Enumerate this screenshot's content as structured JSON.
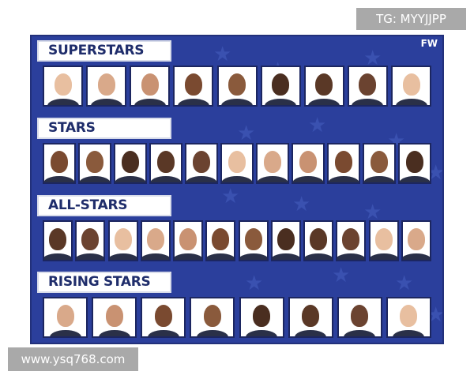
{
  "logo": "FW",
  "watermarks": {
    "top_right": "TG: MYYJJPP",
    "bottom_left": "www.ysq768.com"
  },
  "colors": {
    "background": "#2b3f9c",
    "label_text": "#1f2d6b",
    "label_bg": "#ffffff"
  },
  "tiers": [
    {
      "label": "SUPERSTARS",
      "player_photos": 9
    },
    {
      "label": "STARS",
      "player_photos": 11
    },
    {
      "label": "ALL-STARS",
      "player_photos": 12
    },
    {
      "label": "RISING STARS",
      "player_photos": 8
    }
  ]
}
